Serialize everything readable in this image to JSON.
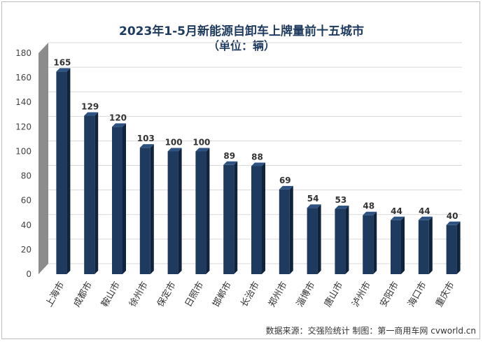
{
  "chart_data": {
    "type": "bar",
    "title": "2023年1-5月新能源自卸车上牌量前十五城市",
    "subtitle": "（单位：辆）",
    "categories": [
      "上海市",
      "成都市",
      "鞍山市",
      "徐州市",
      "保定市",
      "日照市",
      "邯郸市",
      "长治市",
      "郑州市",
      "淄博市",
      "唐山市",
      "泸州市",
      "安阳市",
      "海口市",
      "重庆市"
    ],
    "values": [
      165,
      129,
      120,
      103,
      100,
      100,
      89,
      88,
      69,
      54,
      53,
      48,
      44,
      44,
      40
    ],
    "ylim": [
      0,
      180
    ],
    "yticks": [
      0,
      20,
      40,
      60,
      80,
      100,
      120,
      140,
      160,
      180
    ],
    "grid": true,
    "legend": "none",
    "colors": {
      "bar_front": "#1f3a5f",
      "bar_side": "#10233d",
      "bar_top": "#2e5383",
      "wall": "#8c8c8c",
      "grid": "#d9d9d9"
    }
  },
  "footer": {
    "source": "数据来源：交强险统计  制图：第一商用车网 cvworld.cn"
  }
}
